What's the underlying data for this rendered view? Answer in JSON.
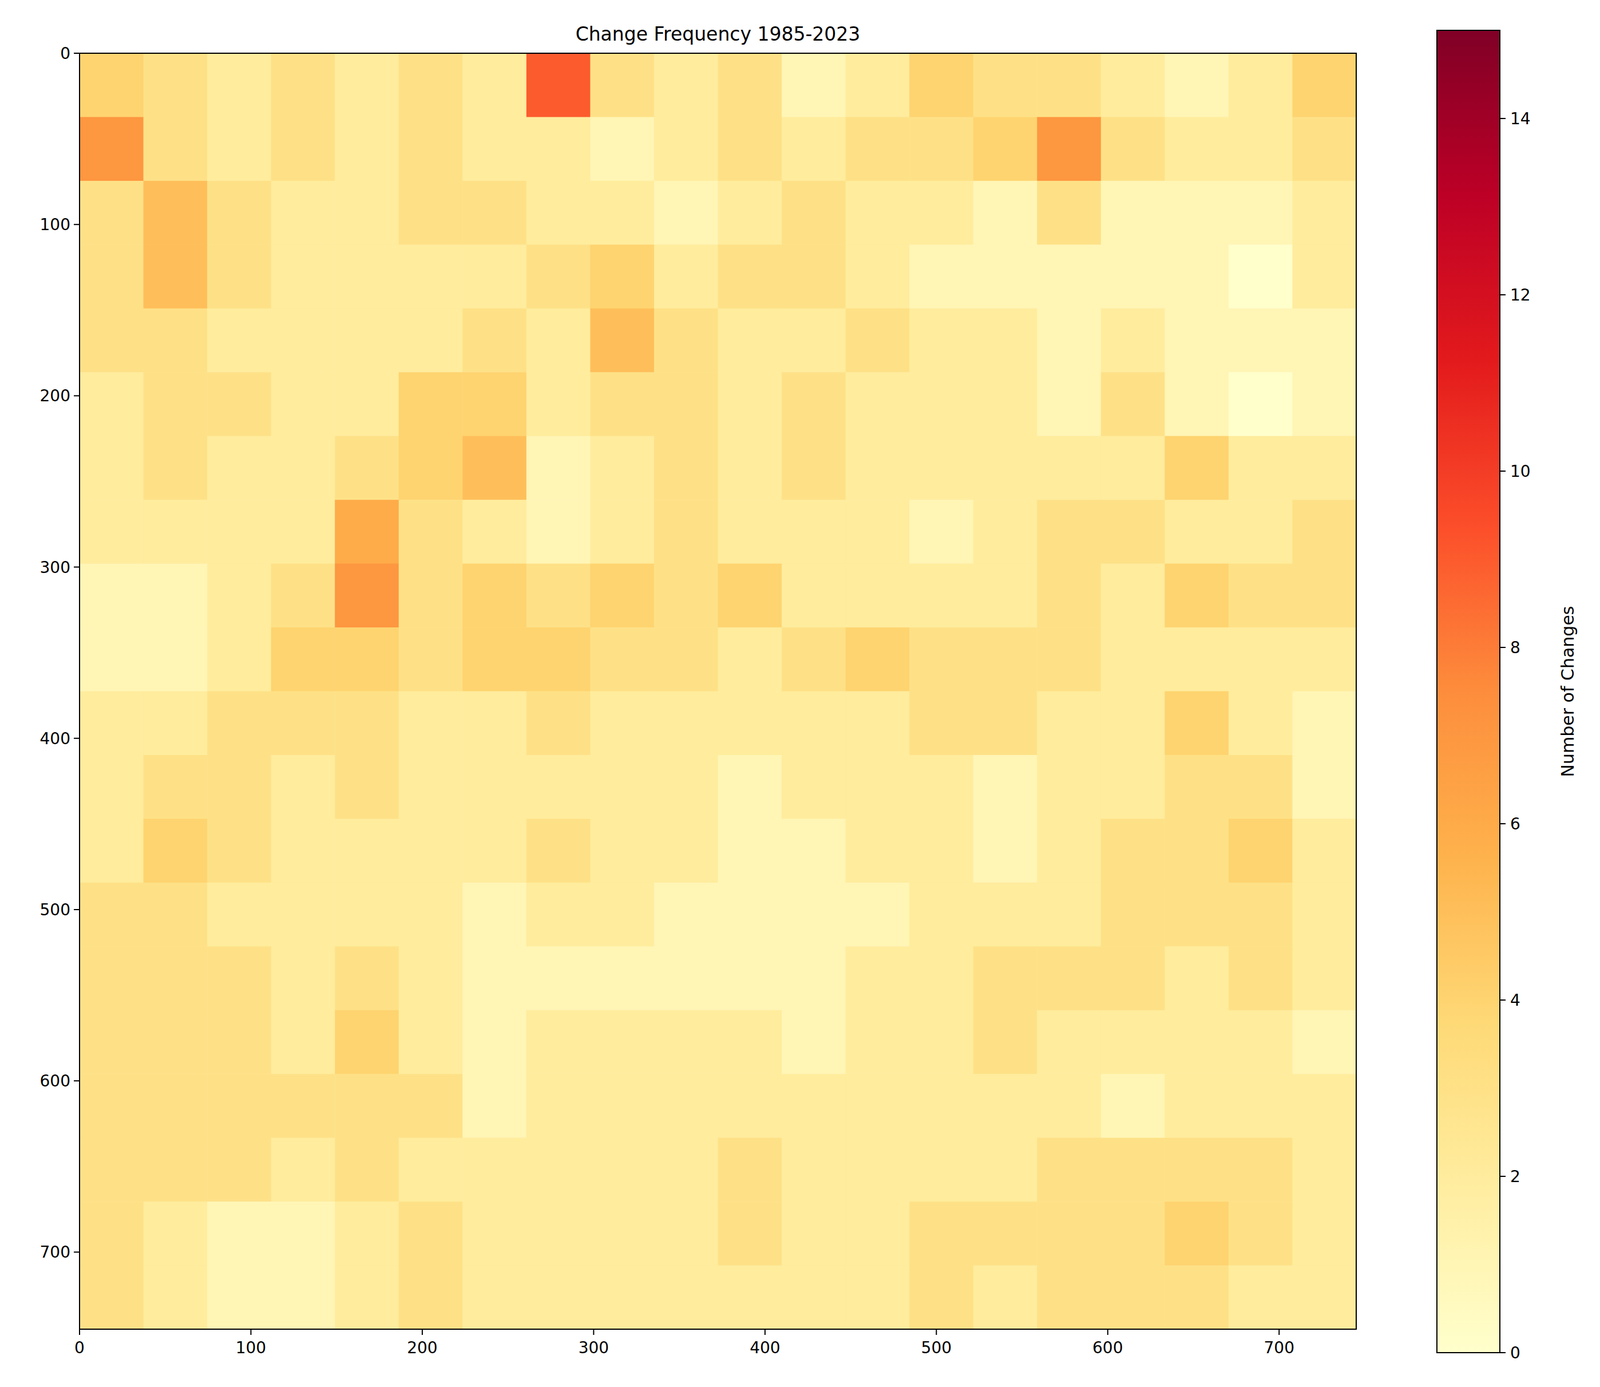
{
  "chart_data": {
    "type": "heatmap",
    "title": "Change Frequency 1985-2023",
    "color": "YlOrRd",
    "xlim": [
      0,
      745
    ],
    "ylim": [
      745,
      0
    ],
    "xticks": [
      0,
      100,
      200,
      300,
      400,
      500,
      600,
      700
    ],
    "yticks": [
      0,
      100,
      200,
      300,
      400,
      500,
      600,
      700
    ],
    "z": [
      [
        4,
        3,
        2,
        3,
        2,
        3,
        2,
        9,
        3,
        2,
        3,
        1,
        2,
        4,
        3,
        3,
        2,
        1,
        2,
        4
      ],
      [
        7,
        3,
        2,
        3,
        2,
        3,
        2,
        2,
        1,
        2,
        3,
        2,
        3,
        3,
        4,
        7,
        3,
        2,
        2,
        3
      ],
      [
        3,
        5,
        3,
        2,
        2,
        3,
        3,
        2,
        2,
        1,
        2,
        3,
        2,
        2,
        1,
        3,
        1,
        1,
        1,
        2
      ],
      [
        3,
        5,
        3,
        2,
        2,
        2,
        2,
        3,
        4,
        2,
        3,
        3,
        2,
        1,
        1,
        1,
        1,
        1,
        0,
        2
      ],
      [
        3,
        3,
        2,
        2,
        2,
        2,
        3,
        2,
        5,
        3,
        2,
        2,
        3,
        2,
        2,
        1,
        2,
        1,
        1,
        1
      ],
      [
        2,
        3,
        3,
        2,
        2,
        4,
        4,
        2,
        3,
        3,
        2,
        3,
        2,
        2,
        2,
        1,
        3,
        1,
        0,
        1
      ],
      [
        2,
        3,
        2,
        2,
        3,
        4,
        5,
        1,
        2,
        3,
        2,
        3,
        2,
        2,
        2,
        2,
        2,
        4,
        2,
        2
      ],
      [
        2,
        2,
        2,
        2,
        6,
        3,
        2,
        1,
        2,
        3,
        2,
        2,
        2,
        1,
        2,
        3,
        3,
        2,
        2,
        3
      ],
      [
        1,
        1,
        2,
        3,
        7,
        3,
        4,
        3,
        4,
        3,
        4,
        2,
        2,
        2,
        2,
        3,
        2,
        4,
        3,
        3
      ],
      [
        1,
        1,
        2,
        4,
        4,
        3,
        4,
        4,
        3,
        3,
        2,
        3,
        4,
        3,
        3,
        3,
        2,
        2,
        2,
        2
      ],
      [
        2,
        2,
        3,
        3,
        3,
        2,
        2,
        3,
        2,
        2,
        2,
        2,
        2,
        3,
        3,
        2,
        2,
        4,
        2,
        1
      ],
      [
        2,
        3,
        3,
        2,
        3,
        2,
        2,
        2,
        2,
        2,
        1,
        2,
        2,
        2,
        1,
        2,
        2,
        3,
        3,
        1
      ],
      [
        2,
        4,
        3,
        2,
        2,
        2,
        2,
        3,
        2,
        2,
        1,
        1,
        2,
        2,
        1,
        2,
        3,
        3,
        4,
        2
      ],
      [
        3,
        3,
        2,
        2,
        2,
        2,
        1,
        2,
        2,
        1,
        1,
        1,
        1,
        2,
        2,
        2,
        3,
        3,
        3,
        2
      ],
      [
        3,
        3,
        3,
        2,
        3,
        2,
        1,
        1,
        1,
        1,
        1,
        1,
        2,
        2,
        3,
        3,
        3,
        2,
        3,
        2
      ],
      [
        3,
        3,
        3,
        2,
        4,
        2,
        1,
        2,
        2,
        2,
        2,
        1,
        2,
        2,
        3,
        2,
        2,
        2,
        2,
        1
      ],
      [
        3,
        3,
        3,
        3,
        3,
        3,
        1,
        2,
        2,
        2,
        2,
        2,
        2,
        2,
        2,
        2,
        1,
        2,
        2,
        2
      ],
      [
        3,
        3,
        3,
        2,
        3,
        2,
        2,
        2,
        2,
        2,
        3,
        2,
        2,
        2,
        2,
        3,
        3,
        3,
        3,
        2
      ],
      [
        3,
        2,
        1,
        1,
        2,
        3,
        2,
        2,
        2,
        2,
        3,
        2,
        2,
        3,
        3,
        3,
        3,
        4,
        3,
        2
      ],
      [
        3,
        2,
        1,
        1,
        2,
        3,
        2,
        2,
        2,
        2,
        2,
        2,
        2,
        3,
        2,
        3,
        3,
        3,
        2,
        2
      ]
    ],
    "colorbar": {
      "label": "Number of Changes",
      "range": [
        0,
        15
      ],
      "ticks": [
        0,
        2,
        4,
        6,
        8,
        10,
        12,
        14
      ]
    }
  }
}
